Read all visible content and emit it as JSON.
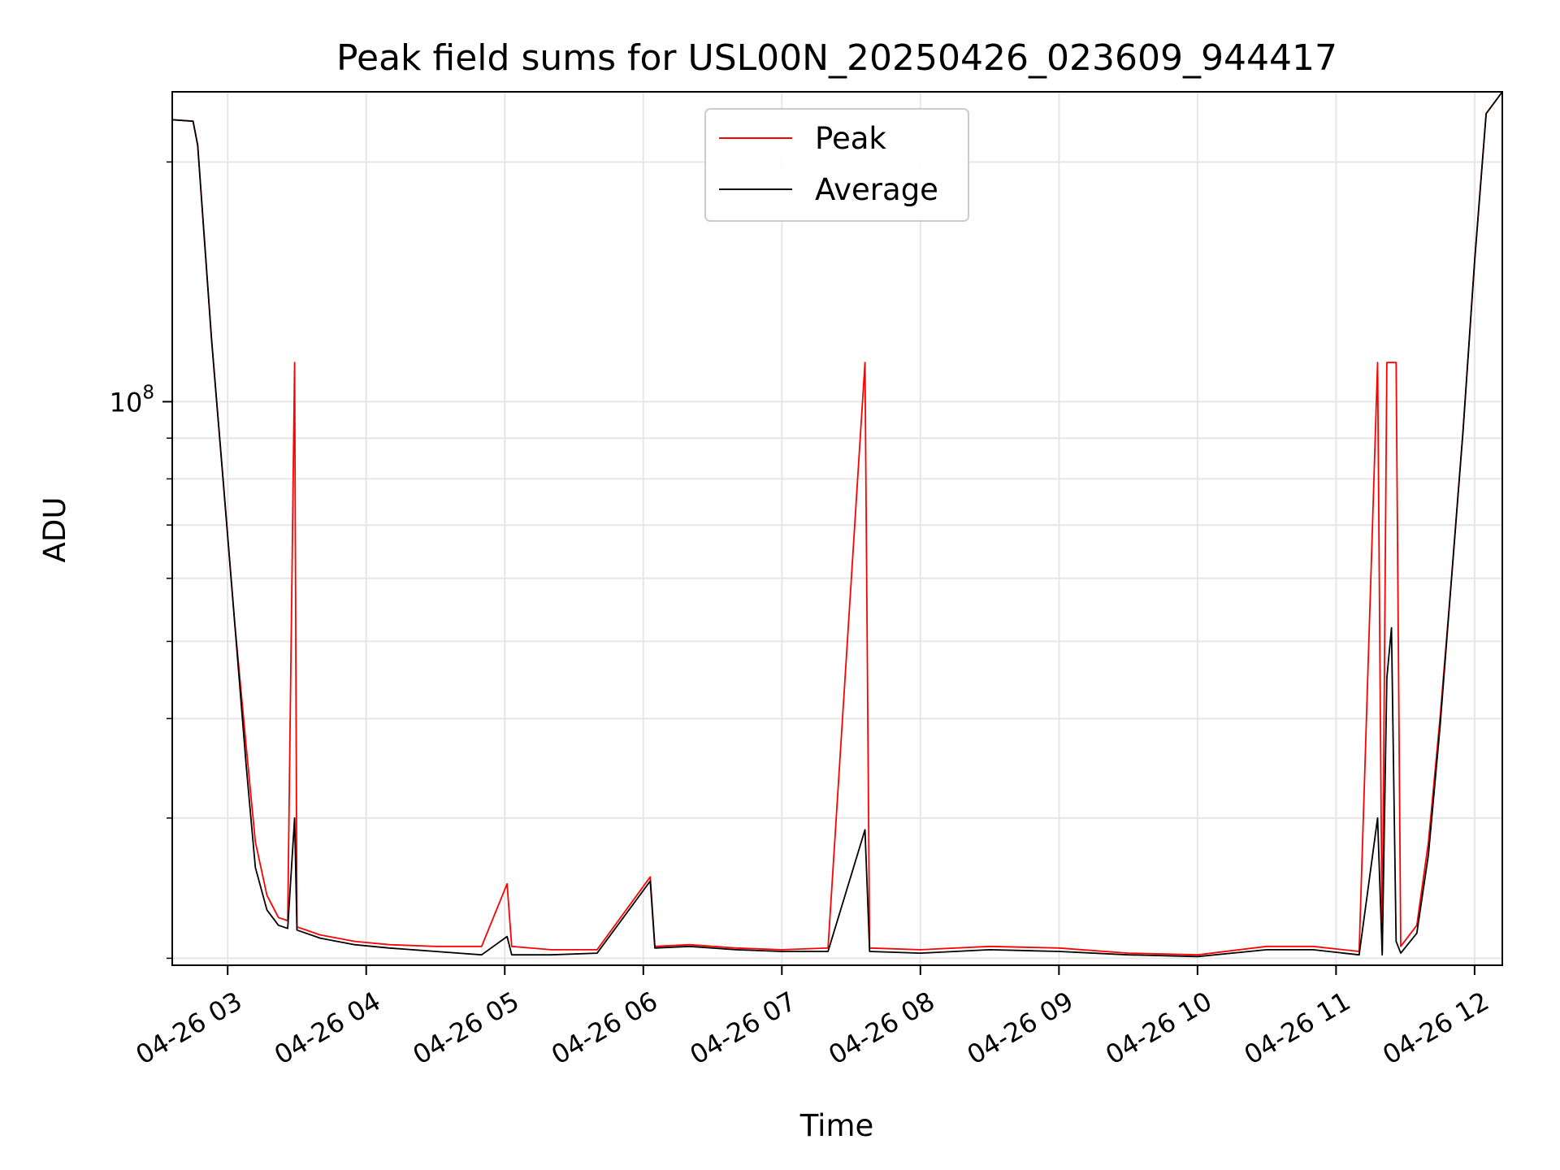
{
  "chart_data": {
    "type": "line",
    "title": "Peak field sums for USL00N_20250426_023609_944417",
    "xlabel": "Time",
    "ylabel": "ADU",
    "x_scale": "time",
    "y_scale": "log",
    "xlim": [
      "2025-04-26T02:36:00",
      "2025-04-26T12:12:00"
    ],
    "ylim": [
      19600000,
      245000000
    ],
    "x_ticks": [
      {
        "value": "2025-04-26T03:00:00",
        "label": "04-26 03"
      },
      {
        "value": "2025-04-26T04:00:00",
        "label": "04-26 04"
      },
      {
        "value": "2025-04-26T05:00:00",
        "label": "04-26 05"
      },
      {
        "value": "2025-04-26T06:00:00",
        "label": "04-26 06"
      },
      {
        "value": "2025-04-26T07:00:00",
        "label": "04-26 07"
      },
      {
        "value": "2025-04-26T08:00:00",
        "label": "04-26 08"
      },
      {
        "value": "2025-04-26T09:00:00",
        "label": "04-26 09"
      },
      {
        "value": "2025-04-26T10:00:00",
        "label": "04-26 10"
      },
      {
        "value": "2025-04-26T11:00:00",
        "label": "04-26 11"
      },
      {
        "value": "2025-04-26T12:00:00",
        "label": "04-26 12"
      }
    ],
    "y_ticks": [
      {
        "value": 100000000,
        "label": "10",
        "exponent": "8"
      }
    ],
    "grid": true,
    "legend_position": "top-center",
    "series": [
      {
        "name": "Peak",
        "color": "#ff0000",
        "points": [
          [
            "2025-04-26T02:36:00",
            226000000
          ],
          [
            "2025-04-26T02:45:00",
            225000000
          ],
          [
            "2025-04-26T02:47:00",
            210000000
          ],
          [
            "2025-04-26T02:53:00",
            120000000
          ],
          [
            "2025-04-26T02:58:00",
            80000000
          ],
          [
            "2025-04-26T03:03:00",
            53000000
          ],
          [
            "2025-04-26T03:08:00",
            37000000
          ],
          [
            "2025-04-26T03:12:00",
            28000000
          ],
          [
            "2025-04-26T03:17:00",
            24000000
          ],
          [
            "2025-04-26T03:22:00",
            22500000
          ],
          [
            "2025-04-26T03:26:00",
            22300000
          ],
          [
            "2025-04-26T03:29:00",
            112000000
          ],
          [
            "2025-04-26T03:30:00",
            21900000
          ],
          [
            "2025-04-26T03:40:00",
            21400000
          ],
          [
            "2025-04-26T03:55:00",
            21000000
          ],
          [
            "2025-04-26T04:10:00",
            20800000
          ],
          [
            "2025-04-26T04:30:00",
            20700000
          ],
          [
            "2025-04-26T04:50:00",
            20700000
          ],
          [
            "2025-04-26T05:01:00",
            24800000
          ],
          [
            "2025-04-26T05:03:00",
            20700000
          ],
          [
            "2025-04-26T05:20:00",
            20500000
          ],
          [
            "2025-04-26T05:40:00",
            20500000
          ],
          [
            "2025-04-26T06:03:00",
            25300000
          ],
          [
            "2025-04-26T06:05:00",
            20700000
          ],
          [
            "2025-04-26T06:20:00",
            20800000
          ],
          [
            "2025-04-26T06:40:00",
            20600000
          ],
          [
            "2025-04-26T07:00:00",
            20500000
          ],
          [
            "2025-04-26T07:20:00",
            20600000
          ],
          [
            "2025-04-26T07:36:00",
            112000000
          ],
          [
            "2025-04-26T07:38:00",
            20600000
          ],
          [
            "2025-04-26T08:00:00",
            20500000
          ],
          [
            "2025-04-26T08:30:00",
            20700000
          ],
          [
            "2025-04-26T09:00:00",
            20600000
          ],
          [
            "2025-04-26T09:30:00",
            20300000
          ],
          [
            "2025-04-26T10:00:00",
            20200000
          ],
          [
            "2025-04-26T10:30:00",
            20700000
          ],
          [
            "2025-04-26T10:50:00",
            20700000
          ],
          [
            "2025-04-26T11:10:00",
            20400000
          ],
          [
            "2025-04-26T11:18:00",
            112000000
          ],
          [
            "2025-04-26T11:20:00",
            20400000
          ],
          [
            "2025-04-26T11:22:00",
            112000000
          ],
          [
            "2025-04-26T11:24:00",
            112000000
          ],
          [
            "2025-04-26T11:26:00",
            112000000
          ],
          [
            "2025-04-26T11:28:00",
            20700000
          ],
          [
            "2025-04-26T11:35:00",
            22000000
          ],
          [
            "2025-04-26T11:40:00",
            28000000
          ],
          [
            "2025-04-26T11:45:00",
            40000000
          ],
          [
            "2025-04-26T11:50:00",
            60000000
          ],
          [
            "2025-04-26T11:55:00",
            92000000
          ],
          [
            "2025-04-26T12:00:00",
            150000000
          ],
          [
            "2025-04-26T12:05:00",
            230000000
          ],
          [
            "2025-04-26T12:12:00",
            245000000
          ]
        ]
      },
      {
        "name": "Average",
        "color": "#000000",
        "points": [
          [
            "2025-04-26T02:36:00",
            226000000
          ],
          [
            "2025-04-26T02:45:00",
            225000000
          ],
          [
            "2025-04-26T02:47:00",
            210000000
          ],
          [
            "2025-04-26T02:53:00",
            120000000
          ],
          [
            "2025-04-26T02:58:00",
            80000000
          ],
          [
            "2025-04-26T03:03:00",
            53000000
          ],
          [
            "2025-04-26T03:08:00",
            35000000
          ],
          [
            "2025-04-26T03:12:00",
            26000000
          ],
          [
            "2025-04-26T03:17:00",
            23000000
          ],
          [
            "2025-04-26T03:22:00",
            22000000
          ],
          [
            "2025-04-26T03:26:00",
            21800000
          ],
          [
            "2025-04-26T03:29:00",
            30000000
          ],
          [
            "2025-04-26T03:30:00",
            21700000
          ],
          [
            "2025-04-26T03:40:00",
            21200000
          ],
          [
            "2025-04-26T03:55:00",
            20800000
          ],
          [
            "2025-04-26T04:10:00",
            20600000
          ],
          [
            "2025-04-26T04:30:00",
            20400000
          ],
          [
            "2025-04-26T04:50:00",
            20200000
          ],
          [
            "2025-04-26T05:01:00",
            21300000
          ],
          [
            "2025-04-26T05:03:00",
            20200000
          ],
          [
            "2025-04-26T05:20:00",
            20200000
          ],
          [
            "2025-04-26T05:40:00",
            20300000
          ],
          [
            "2025-04-26T06:03:00",
            25000000
          ],
          [
            "2025-04-26T06:05:00",
            20600000
          ],
          [
            "2025-04-26T06:20:00",
            20700000
          ],
          [
            "2025-04-26T06:40:00",
            20500000
          ],
          [
            "2025-04-26T07:00:00",
            20400000
          ],
          [
            "2025-04-26T07:20:00",
            20400000
          ],
          [
            "2025-04-26T07:36:00",
            29000000
          ],
          [
            "2025-04-26T07:38:00",
            20400000
          ],
          [
            "2025-04-26T08:00:00",
            20300000
          ],
          [
            "2025-04-26T08:30:00",
            20500000
          ],
          [
            "2025-04-26T09:00:00",
            20400000
          ],
          [
            "2025-04-26T09:30:00",
            20200000
          ],
          [
            "2025-04-26T10:00:00",
            20100000
          ],
          [
            "2025-04-26T10:30:00",
            20500000
          ],
          [
            "2025-04-26T10:50:00",
            20500000
          ],
          [
            "2025-04-26T11:10:00",
            20200000
          ],
          [
            "2025-04-26T11:18:00",
            30000000
          ],
          [
            "2025-04-26T11:20:00",
            20200000
          ],
          [
            "2025-04-26T11:22:00",
            45000000
          ],
          [
            "2025-04-26T11:24:00",
            52000000
          ],
          [
            "2025-04-26T11:26:00",
            21000000
          ],
          [
            "2025-04-26T11:28:00",
            20300000
          ],
          [
            "2025-04-26T11:35:00",
            21500000
          ],
          [
            "2025-04-26T11:40:00",
            27000000
          ],
          [
            "2025-04-26T11:45:00",
            39000000
          ],
          [
            "2025-04-26T11:50:00",
            60000000
          ],
          [
            "2025-04-26T11:55:00",
            92000000
          ],
          [
            "2025-04-26T12:00:00",
            150000000
          ],
          [
            "2025-04-26T12:05:00",
            230000000
          ],
          [
            "2025-04-26T12:12:00",
            245000000
          ]
        ]
      }
    ]
  }
}
